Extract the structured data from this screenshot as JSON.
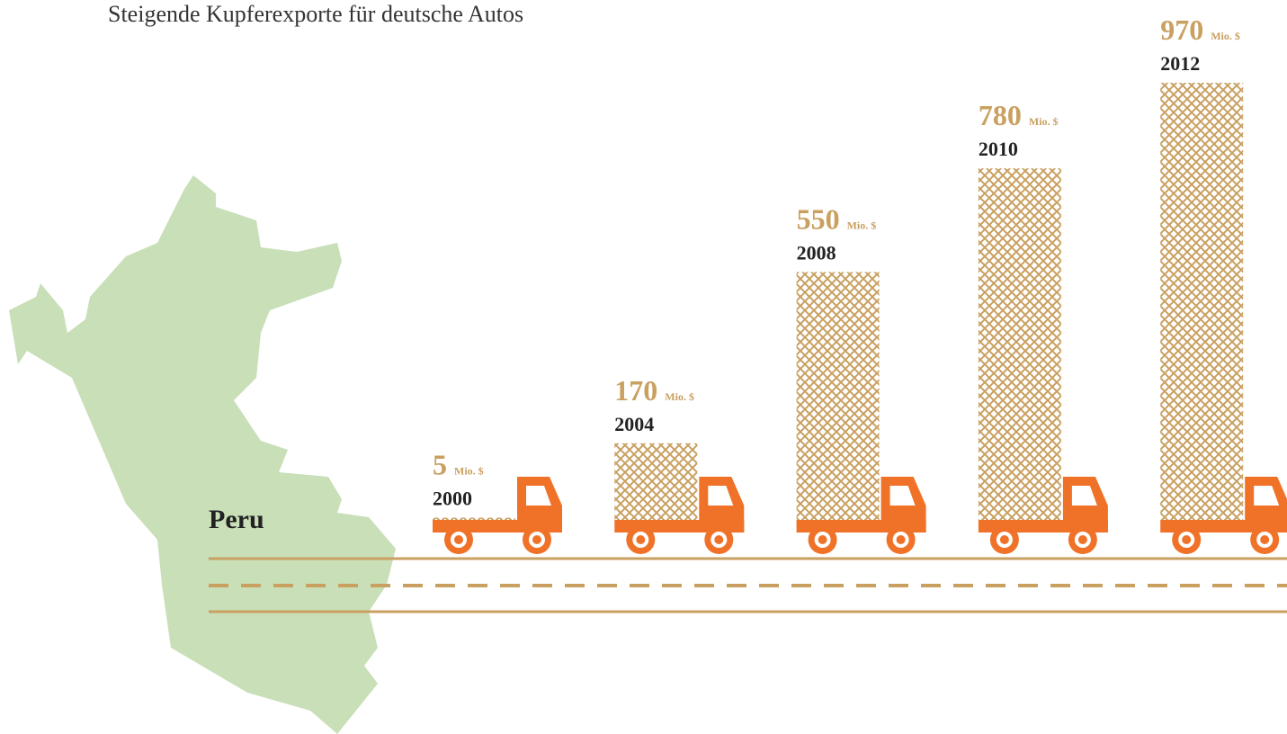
{
  "chart_data": {
    "type": "bar",
    "title": "Steigende Kupferexporte für deutsche Autos",
    "region": "Peru",
    "unit": "Mio. $",
    "categories": [
      "2000",
      "2004",
      "2008",
      "2010",
      "2012"
    ],
    "values": [
      5,
      170,
      550,
      780,
      970
    ],
    "color": "#c9a060",
    "truck_color": "#f07228"
  }
}
